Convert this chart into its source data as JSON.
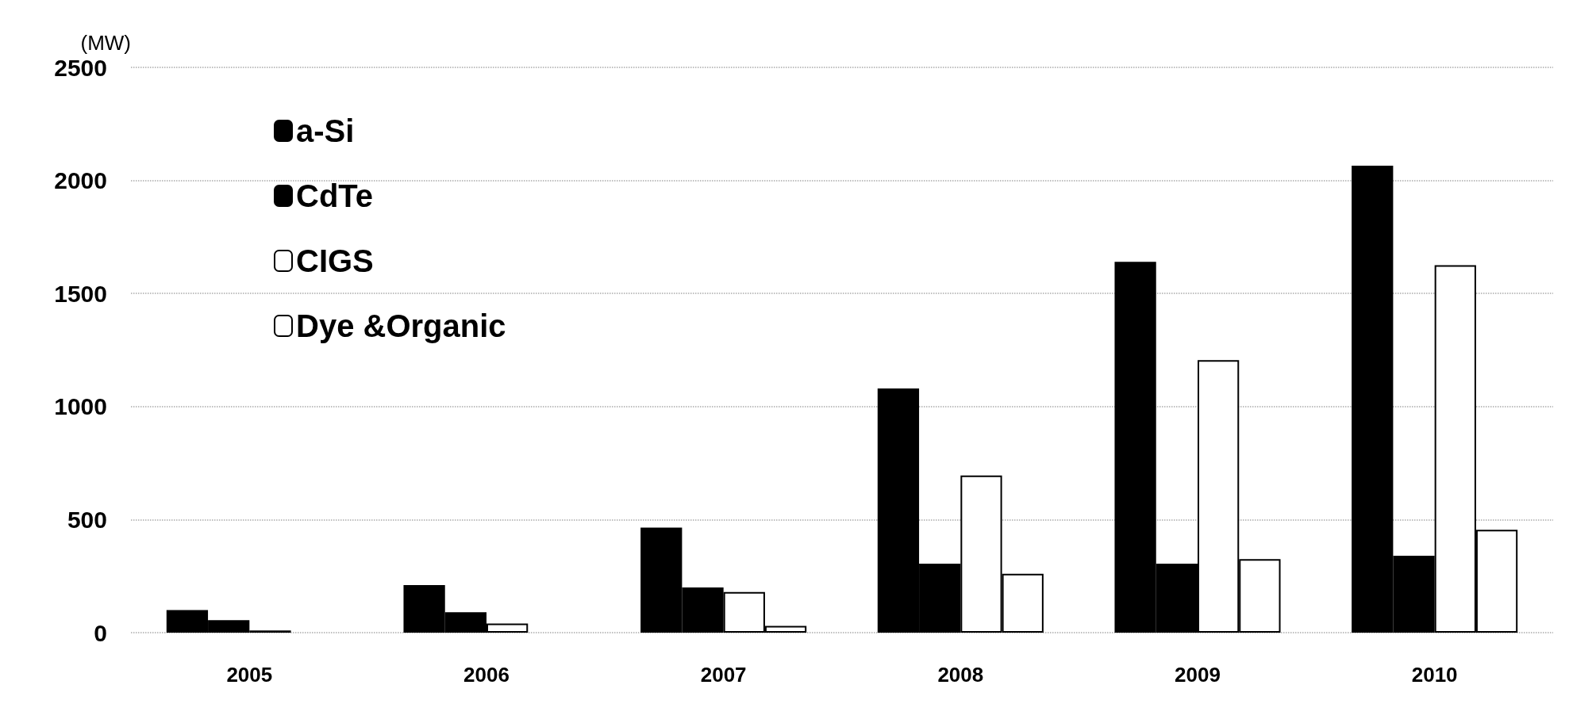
{
  "chart_data": {
    "type": "bar",
    "ylabel": "(MW)",
    "categories": [
      "2005",
      "2006",
      "2007",
      "2008",
      "2009",
      "2010"
    ],
    "series": [
      {
        "name": "a-Si",
        "color": "#000000",
        "values": [
          100,
          210,
          465,
          1080,
          1640,
          2065
        ]
      },
      {
        "name": "CdTe",
        "color": "#000000",
        "values": [
          55,
          90,
          200,
          305,
          305,
          340
        ]
      },
      {
        "name": "CIGS",
        "color": "#ffffff",
        "values": [
          10,
          40,
          180,
          695,
          1205,
          1625
        ]
      },
      {
        "name": "Dye &Organic",
        "color": "#ffffff",
        "values": [
          null,
          null,
          30,
          260,
          325,
          455
        ]
      }
    ],
    "ylim": [
      0,
      2500
    ],
    "yticks": [
      0,
      500,
      1000,
      1500,
      2000,
      2500
    ],
    "grid": "y",
    "legend": "top left"
  }
}
